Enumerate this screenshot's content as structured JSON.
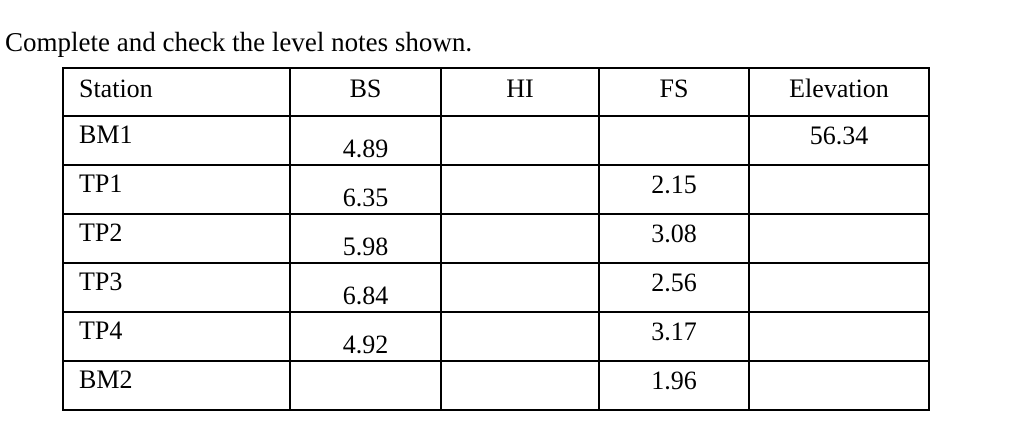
{
  "title": "Complete and check the level notes shown.",
  "table": {
    "header": [
      "Station",
      "BS",
      "HI",
      "FS",
      "Elevation"
    ],
    "rows": [
      [
        "BM1",
        4.89,
        null,
        null,
        56.34
      ],
      [
        "TP1",
        6.35,
        null,
        2.15,
        null
      ],
      [
        "TP2",
        5.98,
        null,
        3.08,
        null
      ],
      [
        "TP3",
        6.84,
        null,
        2.56,
        null
      ],
      [
        "TP4",
        4.92,
        null,
        3.17,
        null
      ],
      [
        "BM2",
        null,
        null,
        1.96,
        null
      ]
    ]
  }
}
